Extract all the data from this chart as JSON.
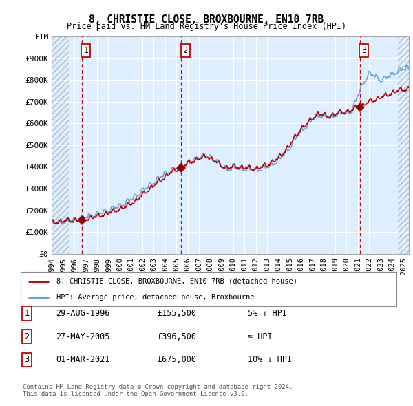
{
  "title": "8, CHRISTIE CLOSE, BROXBOURNE, EN10 7RB",
  "subtitle": "Price paid vs. HM Land Registry's House Price Index (HPI)",
  "ylim": [
    0,
    1000000
  ],
  "yticks": [
    0,
    100000,
    200000,
    300000,
    400000,
    500000,
    600000,
    700000,
    800000,
    900000,
    1000000
  ],
  "ytick_labels": [
    "£0",
    "£100K",
    "£200K",
    "£300K",
    "£400K",
    "£500K",
    "£600K",
    "£700K",
    "£800K",
    "£900K",
    "£1M"
  ],
  "xlim_start": 1994,
  "xlim_end": 2025.5,
  "hpi_color": "#5b9bd5",
  "price_color": "#c00000",
  "marker_color": "#8b0000",
  "sale1": {
    "year": 1996.66,
    "price": 155500,
    "label": "1"
  },
  "sale2": {
    "year": 2005.41,
    "price": 396500,
    "label": "2"
  },
  "sale3": {
    "year": 2021.17,
    "price": 675000,
    "label": "3"
  },
  "vline_color": "#cc0000",
  "grid_color": "#c8d8e8",
  "bg_color": "#ffffff",
  "plot_bg_color": "#ddeeff",
  "legend_house_label": "8, CHRISTIE CLOSE, BROXBOURNE, EN10 7RB (detached house)",
  "legend_hpi_label": "HPI: Average price, detached house, Broxbourne",
  "table_rows": [
    {
      "num": "1",
      "date": "29-AUG-1996",
      "price": "£155,500",
      "rel": "5% ↑ HPI"
    },
    {
      "num": "2",
      "date": "27-MAY-2005",
      "price": "£396,500",
      "rel": "≈ HPI"
    },
    {
      "num": "3",
      "date": "01-MAR-2021",
      "price": "£675,000",
      "rel": "10% ↓ HPI"
    }
  ],
  "footnote": "Contains HM Land Registry data © Crown copyright and database right 2024.\nThis data is licensed under the Open Government Licence v3.0.",
  "hatch_left_end": 1995.5,
  "hatch_right_start": 2024.5
}
